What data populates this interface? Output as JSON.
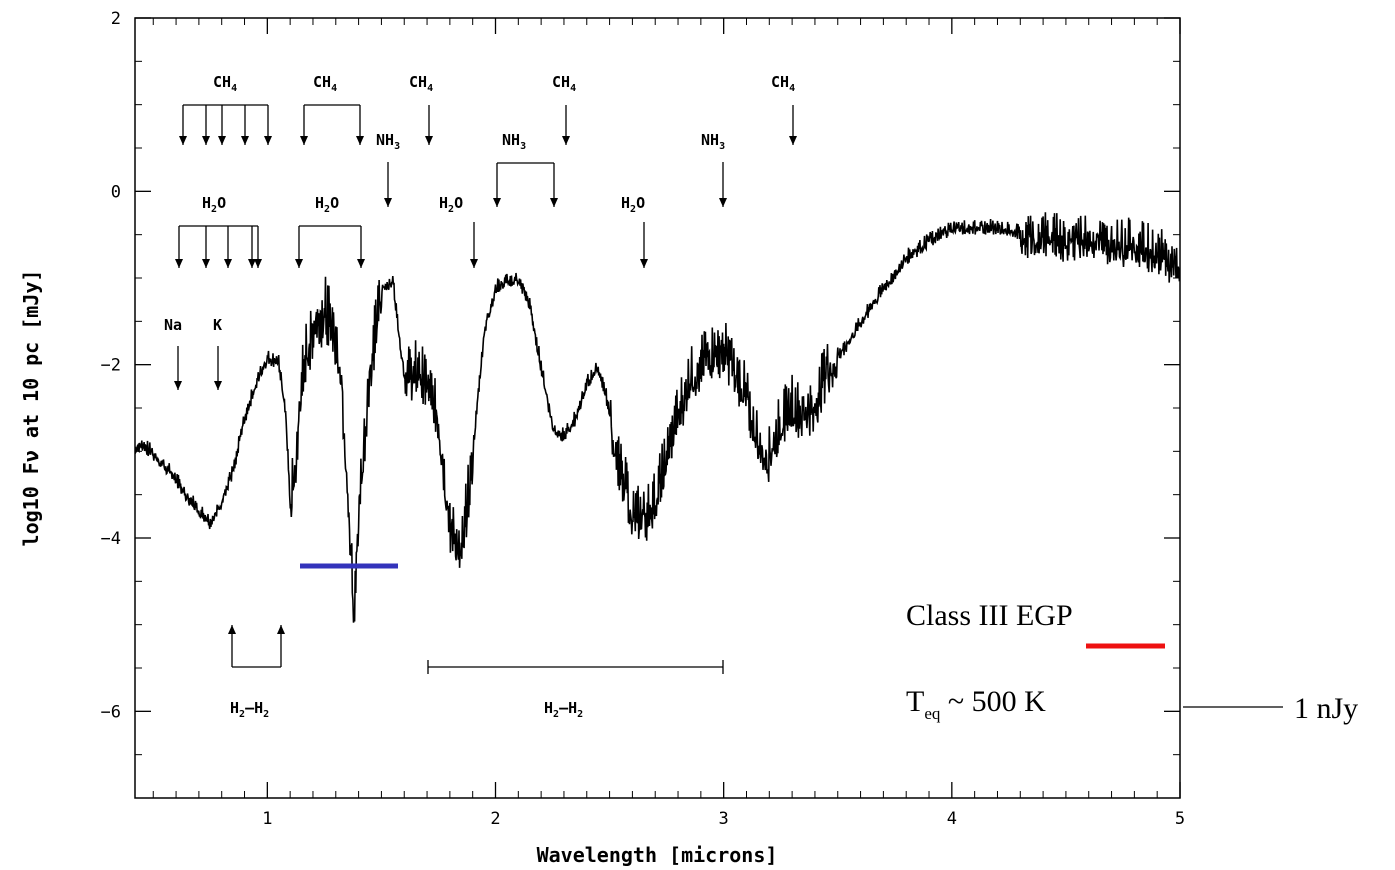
{
  "chart_data": {
    "type": "line",
    "xlabel": "Wavelength [microns]",
    "ylabel": "log10 Fν at 10 pc [mJy]",
    "xlim": [
      0.42,
      5.0
    ],
    "ylim": [
      -7.0,
      2.0
    ],
    "x_ticks": [
      1,
      2,
      3,
      4,
      5
    ],
    "y_ticks": [
      2,
      0,
      -2,
      -4,
      -6
    ],
    "grid": false,
    "series": [
      {
        "x": [
          0.42,
          0.45,
          0.5,
          0.55,
          0.6,
          0.65,
          0.7,
          0.75,
          0.8,
          0.85,
          0.9,
          0.95,
          1.0,
          1.05,
          1.08,
          1.1,
          1.13,
          1.15,
          1.2,
          1.25,
          1.28,
          1.32,
          1.35,
          1.38,
          1.4,
          1.45,
          1.5,
          1.55,
          1.6,
          1.65,
          1.7,
          1.75,
          1.8,
          1.85,
          1.9,
          1.95,
          2.0,
          2.05,
          2.1,
          2.15,
          2.2,
          2.25,
          2.3,
          2.35,
          2.4,
          2.45,
          2.5,
          2.55,
          2.6,
          2.65,
          2.7,
          2.75,
          2.8,
          2.85,
          2.9,
          2.95,
          3.0,
          3.05,
          3.1,
          3.15,
          3.2,
          3.25,
          3.3,
          3.35,
          3.4,
          3.45,
          3.5,
          3.6,
          3.7,
          3.8,
          3.9,
          4.0,
          4.1,
          4.2,
          4.3,
          4.4,
          4.5,
          4.6,
          4.7,
          4.8,
          4.9,
          5.0
        ],
        "values": [
          -2.95,
          -2.9,
          -3.0,
          -3.15,
          -3.3,
          -3.5,
          -3.65,
          -3.8,
          -3.55,
          -3.2,
          -2.6,
          -2.2,
          -1.9,
          -1.95,
          -2.5,
          -3.6,
          -3.0,
          -2.0,
          -1.5,
          -1.3,
          -1.35,
          -1.9,
          -3.2,
          -4.9,
          -3.6,
          -2.0,
          -1.1,
          -1.0,
          -2.1,
          -2.0,
          -2.1,
          -2.6,
          -3.8,
          -4.1,
          -3.0,
          -1.6,
          -1.1,
          -1.0,
          -1.0,
          -1.3,
          -2.0,
          -2.7,
          -2.8,
          -2.6,
          -2.2,
          -2.0,
          -2.5,
          -3.2,
          -3.6,
          -3.7,
          -3.5,
          -3.0,
          -2.5,
          -2.1,
          -1.95,
          -1.8,
          -1.75,
          -2.0,
          -2.3,
          -2.8,
          -3.0,
          -2.6,
          -2.4,
          -2.5,
          -2.4,
          -2.0,
          -1.9,
          -1.5,
          -1.1,
          -0.75,
          -0.55,
          -0.4,
          -0.4,
          -0.4,
          -0.45,
          -0.45,
          -0.5,
          -0.45,
          -0.55,
          -0.55,
          -0.65,
          -0.8
        ]
      }
    ],
    "annotations": {
      "ch4_main": "CH",
      "ch4_sub": "4",
      "nh3_main": "NH",
      "nh3_sub": "3",
      "h2o_main": "H",
      "h2o_sub": "2",
      "h2o_end": "O",
      "na": "Na",
      "k": "K",
      "h2h2_main": "H",
      "h2h2_sub": "2",
      "h2h2_dash": "–H",
      "class_label": "Class III EGP",
      "teq_main": "T",
      "teq_sub": "eq",
      "teq_rest": " ~ 500 K",
      "flux_marker": "1 nJy"
    },
    "colors": {
      "blue_bar": "#3333bb",
      "red_bar": "#ee1111",
      "curve": "#000000"
    }
  }
}
